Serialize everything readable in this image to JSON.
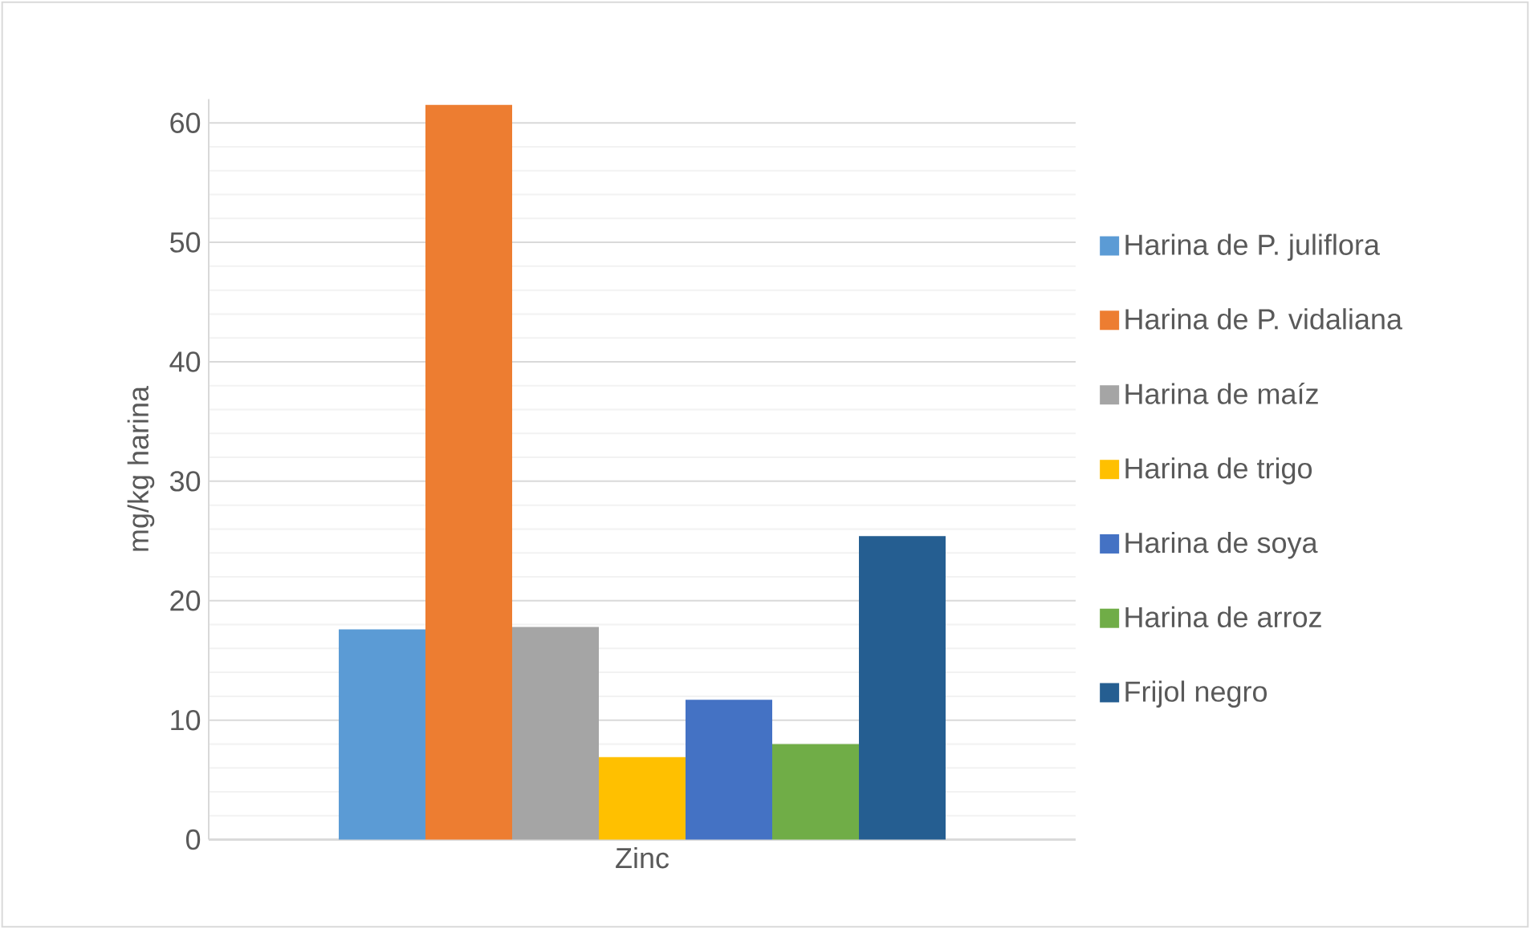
{
  "chart_data": {
    "type": "bar",
    "ylabel": "mg/kg harina",
    "categories": [
      "Zinc"
    ],
    "series": [
      {
        "name": "Harina de P. juliflora",
        "color": "#5b9bd5",
        "values": [
          17.6
        ]
      },
      {
        "name": "Harina de P. vidaliana",
        "color": "#ed7d31",
        "values": [
          61.5
        ]
      },
      {
        "name": "Harina de maíz",
        "color": "#a5a5a5",
        "values": [
          17.8
        ]
      },
      {
        "name": "Harina de trigo",
        "color": "#ffc000",
        "values": [
          6.9
        ]
      },
      {
        "name": "Harina de soya",
        "color": "#4472c4",
        "values": [
          11.7
        ]
      },
      {
        "name": "Harina de arroz",
        "color": "#70ad47",
        "values": [
          8.0
        ]
      },
      {
        "name": "Frijol negro",
        "color": "#255e91",
        "values": [
          25.4
        ]
      }
    ],
    "ylim": [
      0,
      62
    ],
    "yticks": [
      0,
      10,
      20,
      30,
      40,
      50,
      60
    ],
    "grid": "y",
    "legend": "right"
  }
}
